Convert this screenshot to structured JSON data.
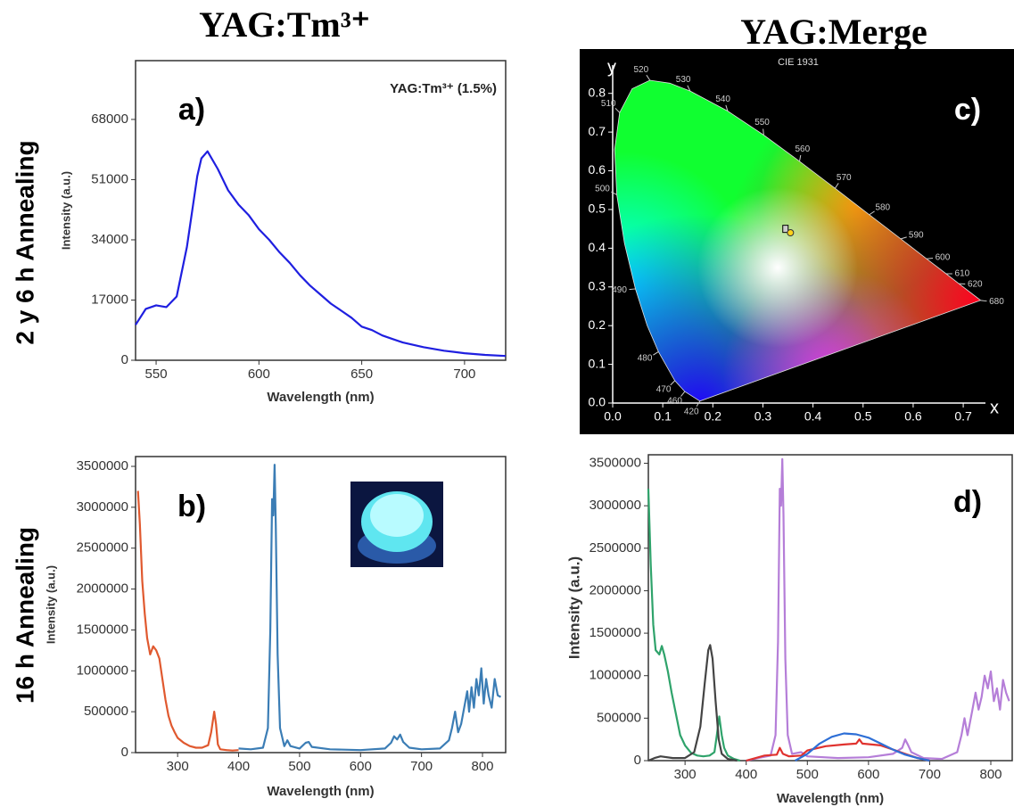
{
  "column_titles": [
    "YAG:Tm³⁺",
    "YAG:Merge"
  ],
  "row_labels": [
    "2 y 6 h Annealing",
    "16 h Annealing"
  ],
  "chart_data": [
    {
      "type": "line",
      "panel_label": "a)",
      "legend_text": "YAG:Tm³⁺ (1.5%)",
      "xlabel": "Wavelength (nm)",
      "ylabel": "Intensity (a.u.)",
      "xlim": [
        540,
        720
      ],
      "xticks": [
        550,
        600,
        650,
        700
      ],
      "ylim": [
        0,
        84600
      ],
      "yticks": [
        0,
        17000,
        34000,
        51000,
        68000
      ],
      "series": [
        {
          "color": "#1f1fe0",
          "x": [
            540,
            545,
            550,
            555,
            560,
            565,
            570,
            572,
            575,
            580,
            585,
            590,
            595,
            600,
            605,
            610,
            615,
            620,
            625,
            630,
            635,
            640,
            645,
            650,
            655,
            660,
            665,
            670,
            680,
            690,
            700,
            710,
            720
          ],
          "values": [
            10000,
            14500,
            15500,
            15000,
            18000,
            32000,
            52000,
            57000,
            59000,
            54000,
            48000,
            44000,
            41000,
            37000,
            34000,
            30500,
            27500,
            24000,
            21000,
            18500,
            16000,
            14000,
            12000,
            9500,
            8500,
            7000,
            6000,
            5000,
            3700,
            2700,
            2000,
            1500,
            1200
          ]
        }
      ]
    },
    {
      "type": "line",
      "panel_label": "b)",
      "xlabel": "Wavelength (nm)",
      "ylabel": "Intensity (a.u.)",
      "xlim": [
        231,
        838
      ],
      "xticks": [
        300,
        400,
        500,
        600,
        700,
        800
      ],
      "ylim": [
        0,
        3620000
      ],
      "yticks": [
        0,
        500000,
        1000000,
        1500000,
        2000000,
        2500000,
        3000000,
        3500000
      ],
      "series": [
        {
          "color": "#e0592f",
          "x": [
            235,
            238,
            242,
            246,
            250,
            255,
            260,
            265,
            270,
            275,
            280,
            285,
            290,
            295,
            300,
            310,
            320,
            330,
            340,
            350,
            355,
            360,
            363,
            366,
            370,
            380,
            390,
            400
          ],
          "values": [
            3200000,
            2800000,
            2100000,
            1700000,
            1400000,
            1200000,
            1300000,
            1250000,
            1150000,
            900000,
            650000,
            450000,
            330000,
            250000,
            180000,
            120000,
            80000,
            60000,
            60000,
            90000,
            250000,
            500000,
            350000,
            100000,
            40000,
            30000,
            25000,
            30000
          ]
        },
        {
          "color": "#3b7db5",
          "x": [
            400,
            420,
            440,
            448,
            452,
            455,
            457,
            459,
            461,
            464,
            468,
            475,
            480,
            485,
            500,
            510,
            515,
            520,
            550,
            600,
            640,
            650,
            655,
            660,
            665,
            670,
            680,
            700,
            730,
            745,
            750,
            755,
            760,
            765,
            770,
            775,
            778,
            782,
            786,
            790,
            794,
            798,
            802,
            806,
            810,
            815,
            820,
            825,
            830
          ],
          "values": [
            50000,
            40000,
            60000,
            300000,
            1500000,
            3100000,
            2900000,
            3520000,
            2800000,
            1200000,
            300000,
            80000,
            150000,
            80000,
            50000,
            120000,
            130000,
            70000,
            40000,
            30000,
            50000,
            120000,
            200000,
            160000,
            220000,
            130000,
            60000,
            40000,
            50000,
            150000,
            300000,
            500000,
            250000,
            350000,
            550000,
            750000,
            500000,
            800000,
            550000,
            900000,
            700000,
            1030000,
            600000,
            900000,
            700000,
            550000,
            900000,
            700000,
            680000
          ]
        }
      ]
    },
    {
      "type": "cie",
      "panel_label": "c)",
      "title": "CIE 1931",
      "xlabel": "x",
      "ylabel": "y",
      "xlim": [
        0,
        0.78
      ],
      "xticks": [
        {
          "value": 0,
          "label": "0.0"
        },
        0.1,
        0.2,
        0.3,
        0.4,
        0.5,
        0.6,
        0.7
      ],
      "ylim": [
        0,
        0.85
      ],
      "yticks": [
        {
          "value": 0,
          "label": "0.0"
        },
        0.1,
        0.2,
        0.3,
        0.4,
        0.5,
        0.6,
        0.7,
        0.8
      ],
      "locus": {
        "labels": [
          "420",
          "460",
          "470",
          "480",
          null,
          "490",
          null,
          "500",
          null,
          "510",
          null,
          "520",
          null,
          "530",
          "540",
          "550",
          "560",
          "570",
          "580",
          "590",
          "600",
          "610",
          "620",
          "680"
        ],
        "x": [
          0.1741,
          0.144,
          0.1241,
          0.0913,
          0.0687,
          0.0454,
          0.0235,
          0.0082,
          0.0039,
          0.0139,
          0.0389,
          0.0743,
          0.1142,
          0.1547,
          0.2296,
          0.3016,
          0.3731,
          0.4441,
          0.5125,
          0.5752,
          0.627,
          0.6658,
          0.6915,
          0.7347
        ],
        "y": [
          0.005,
          0.0297,
          0.0578,
          0.1327,
          0.2007,
          0.295,
          0.4127,
          0.5384,
          0.6548,
          0.7502,
          0.812,
          0.8338,
          0.8262,
          0.8059,
          0.7543,
          0.6923,
          0.6245,
          0.5547,
          0.4866,
          0.4242,
          0.3725,
          0.334,
          0.3083,
          0.2653
        ]
      },
      "points": {
        "x": [
          0.345,
          0.355
        ],
        "y": [
          0.45,
          0.44
        ]
      }
    },
    {
      "type": "line",
      "panel_label": "d)",
      "xlabel": "Wavelength (nm)",
      "ylabel": "Intensity (a.u.)",
      "xlim": [
        240,
        835
      ],
      "xticks": [
        300,
        400,
        500,
        600,
        700,
        800
      ],
      "ylim": [
        0,
        3600000
      ],
      "yticks": [
        0,
        500000,
        1000000,
        1500000,
        2000000,
        2500000,
        3000000,
        3500000
      ],
      "series": [
        {
          "color": "#2fa36b",
          "x": [
            240,
            244,
            248,
            252,
            258,
            262,
            266,
            272,
            278,
            285,
            292,
            300,
            310,
            320,
            330,
            340,
            348,
            352,
            356,
            360,
            364,
            370,
            380,
            390
          ],
          "values": [
            3200000,
            2300000,
            1600000,
            1300000,
            1250000,
            1350000,
            1250000,
            1050000,
            800000,
            550000,
            300000,
            180000,
            90000,
            60000,
            50000,
            60000,
            100000,
            300000,
            520000,
            300000,
            150000,
            60000,
            20000,
            0
          ]
        },
        {
          "color": "#444444",
          "x": [
            240,
            250,
            260,
            280,
            300,
            315,
            325,
            332,
            338,
            341,
            345,
            350,
            355,
            360,
            370,
            385
          ],
          "values": [
            0,
            30000,
            50000,
            30000,
            30000,
            100000,
            400000,
            900000,
            1300000,
            1360000,
            1200000,
            700000,
            250000,
            80000,
            20000,
            0
          ]
        },
        {
          "color": "#b57ed8",
          "x": [
            400,
            420,
            440,
            448,
            452,
            455,
            457,
            459,
            461,
            464,
            468,
            475,
            490,
            500,
            550,
            600,
            640,
            655,
            660,
            665,
            670,
            690,
            720,
            745,
            752,
            757,
            762,
            770,
            775,
            780,
            785,
            790,
            795,
            800,
            805,
            810,
            815,
            820,
            825,
            830
          ],
          "values": [
            0,
            30000,
            60000,
            300000,
            1400000,
            3200000,
            3000000,
            3550000,
            2900000,
            1200000,
            300000,
            80000,
            100000,
            50000,
            30000,
            40000,
            80000,
            150000,
            250000,
            180000,
            100000,
            30000,
            20000,
            100000,
            300000,
            500000,
            300000,
            600000,
            800000,
            600000,
            750000,
            1000000,
            850000,
            1050000,
            700000,
            850000,
            600000,
            950000,
            800000,
            700000
          ]
        },
        {
          "color": "#e0322e",
          "x": [
            400,
            430,
            450,
            455,
            460,
            470,
            490,
            500,
            530,
            560,
            580,
            585,
            590,
            620,
            640,
            660,
            680,
            700
          ],
          "values": [
            0,
            60000,
            70000,
            150000,
            80000,
            50000,
            60000,
            120000,
            170000,
            190000,
            200000,
            250000,
            200000,
            180000,
            130000,
            80000,
            30000,
            0
          ]
        },
        {
          "color": "#2e6fd6",
          "x": [
            480,
            500,
            520,
            540,
            560,
            580,
            600,
            620,
            640,
            660,
            680,
            700
          ],
          "values": [
            0,
            80000,
            200000,
            280000,
            320000,
            310000,
            270000,
            200000,
            130000,
            70000,
            30000,
            0
          ]
        }
      ]
    }
  ]
}
